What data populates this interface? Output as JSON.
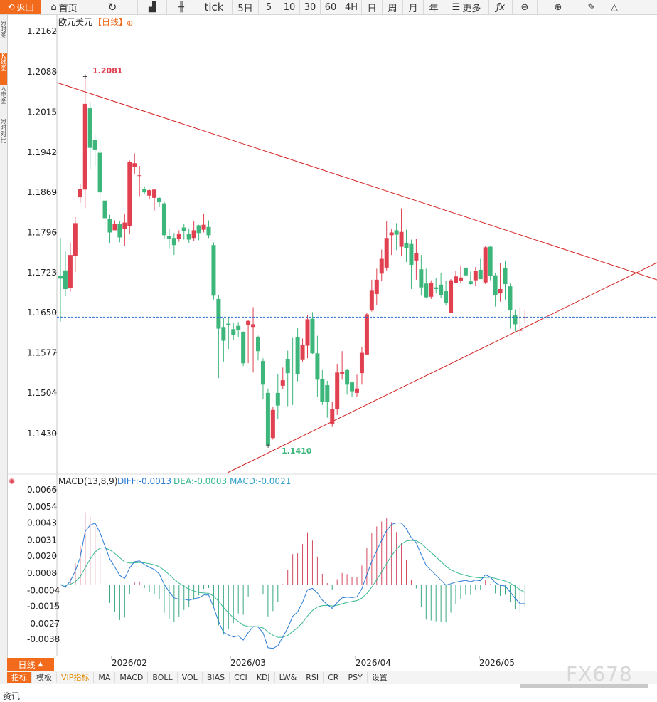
{
  "toolbar": {
    "back": "返回",
    "home": "首页",
    "tick": "tick",
    "day5": "5日",
    "p5": "5",
    "p10": "10",
    "p30": "30",
    "p60": "60",
    "p4h": "4H",
    "day": "日",
    "week": "周",
    "month": "月",
    "year": "年",
    "more": "更多"
  },
  "sidebar": {
    "tabs": [
      "分时图",
      "K线图",
      "闪电图",
      "分时对比"
    ]
  },
  "chart": {
    "title": "欧元美元",
    "period": "【日线】",
    "high_label": "1.2081",
    "low_label": "1.1410",
    "last_price": 1.1642,
    "y_ticks": [
      "1.2162",
      "1.2088",
      "1.2015",
      "1.1942",
      "1.1869",
      "1.1796",
      "1.1723",
      "1.1650",
      "1.1577",
      "1.1504",
      "1.1430"
    ],
    "x_ticks": [
      "2026/02",
      "2026/03",
      "2026/04",
      "2026/05"
    ],
    "colors": {
      "up": "#e04050",
      "down": "#3cb67a",
      "trend": "#d42020",
      "last": "#2a6fd6"
    }
  },
  "macd": {
    "title": "MACD(13,8,9)",
    "diff": "DIFF:-0.0013",
    "dea": "DEA:-0.0003",
    "macd": "MACD:-0.0021",
    "y_ticks": [
      "0.0066",
      "0.0054",
      "0.0043",
      "0.0031",
      "0.0020",
      "0.0008",
      "-0.0004",
      "-0.0015",
      "-0.0027",
      "-0.0038"
    ],
    "colors": {
      "diff": "#2a7bd6",
      "dea": "#35b890"
    }
  },
  "period_button": "日线",
  "indicators": [
    "指标",
    "模板",
    "VIP指标",
    "MA",
    "MACD",
    "BOLL",
    "VOL",
    "BIAS",
    "CCI",
    "KDJ",
    "LW&",
    "RSI",
    "CR",
    "PSY",
    "设置"
  ],
  "info_tab": "资讯",
  "watermark": "FX678",
  "chart_data": {
    "type": "candlestick",
    "candles": [
      [
        1.1717,
        1.1712,
        1.1786,
        1.1634
      ],
      [
        1.1727,
        1.1693,
        1.1761,
        1.168
      ],
      [
        1.1695,
        1.1755,
        1.1778,
        1.1688
      ],
      [
        1.1753,
        1.1813,
        1.1824,
        1.1724
      ],
      [
        1.186,
        1.1875,
        1.1885,
        1.185
      ],
      [
        1.1874,
        1.203,
        1.2081,
        1.184
      ],
      [
        1.2022,
        1.195,
        1.2034,
        1.191
      ],
      [
        1.1964,
        1.1947,
        1.1973,
        1.1917
      ],
      [
        1.1941,
        1.1869,
        1.1959,
        1.1855
      ],
      [
        1.1854,
        1.1822,
        1.1859,
        1.1788
      ],
      [
        1.1821,
        1.1796,
        1.1828,
        1.1777
      ],
      [
        1.18,
        1.1811,
        1.1818,
        1.1803
      ],
      [
        1.1812,
        1.1787,
        1.1816,
        1.1778
      ],
      [
        1.1802,
        1.1814,
        1.1829,
        1.1771
      ],
      [
        1.1807,
        1.1924,
        1.1927,
        1.1793
      ],
      [
        1.1915,
        1.1922,
        1.194,
        1.1902
      ],
      [
        1.1899,
        1.19,
        1.1917,
        1.1862
      ],
      [
        1.1875,
        1.1869,
        1.188,
        1.1866
      ],
      [
        1.1863,
        1.1873,
        1.1874,
        1.1856
      ],
      [
        1.1859,
        1.1874,
        1.1875,
        1.1836
      ],
      [
        1.1859,
        1.1851,
        1.186,
        1.1842
      ],
      [
        1.1849,
        1.1791,
        1.1852,
        1.1784
      ],
      [
        1.1789,
        1.1785,
        1.1802,
        1.1766
      ],
      [
        1.1786,
        1.1773,
        1.1795,
        1.1755
      ],
      [
        1.1784,
        1.1794,
        1.18,
        1.1779
      ],
      [
        1.1805,
        1.1799,
        1.1812,
        1.1783
      ],
      [
        1.1793,
        1.1783,
        1.1803,
        1.1777
      ],
      [
        1.1786,
        1.18,
        1.1817,
        1.178
      ],
      [
        1.1809,
        1.1795,
        1.181,
        1.1782
      ],
      [
        1.1801,
        1.181,
        1.183,
        1.1796
      ],
      [
        1.1806,
        1.1791,
        1.1818,
        1.1786
      ],
      [
        1.1773,
        1.1681,
        1.1778,
        1.1674
      ],
      [
        1.1675,
        1.1621,
        1.1682,
        1.1531
      ],
      [
        1.1624,
        1.1599,
        1.164,
        1.1561
      ],
      [
        1.163,
        1.1627,
        1.1642,
        1.1584
      ],
      [
        1.162,
        1.161,
        1.1632,
        1.1601
      ],
      [
        1.1626,
        1.1618,
        1.1633,
        1.1605
      ],
      [
        1.1615,
        1.1558,
        1.1616,
        1.1553
      ],
      [
        1.1627,
        1.1635,
        1.1637,
        1.1558
      ],
      [
        1.1624,
        1.1629,
        1.166,
        1.1541
      ],
      [
        1.1605,
        1.158,
        1.1608,
        1.1563
      ],
      [
        1.1562,
        1.1519,
        1.1567,
        1.1492
      ],
      [
        1.1504,
        1.1409,
        1.1512,
        1.141
      ],
      [
        1.1422,
        1.1473,
        1.1478,
        1.1419
      ],
      [
        1.1504,
        1.1481,
        1.1538,
        1.1456
      ],
      [
        1.1517,
        1.1527,
        1.155,
        1.1511
      ],
      [
        1.1566,
        1.154,
        1.1581,
        1.148
      ],
      [
        1.1579,
        1.1578,
        1.1604,
        1.1482
      ],
      [
        1.1606,
        1.1538,
        1.1622,
        1.1525
      ],
      [
        1.1565,
        1.1591,
        1.1603,
        1.1561
      ],
      [
        1.159,
        1.1638,
        1.1645,
        1.1567
      ],
      [
        1.1639,
        1.1576,
        1.1651,
        1.1575
      ],
      [
        1.1576,
        1.1528,
        1.1608,
        1.1496
      ],
      [
        1.1529,
        1.1488,
        1.1546,
        1.1482
      ],
      [
        1.1518,
        1.1487,
        1.1526,
        1.1459
      ],
      [
        1.1447,
        1.1475,
        1.1487,
        1.1442
      ],
      [
        1.1474,
        1.1541,
        1.1557,
        1.1464
      ],
      [
        1.1539,
        1.1542,
        1.158,
        1.1528
      ],
      [
        1.1546,
        1.1519,
        1.1548,
        1.1501
      ],
      [
        1.1523,
        1.1507,
        1.1525,
        1.1496
      ],
      [
        1.1504,
        1.1512,
        1.1537,
        1.1497
      ],
      [
        1.154,
        1.1577,
        1.1587,
        1.1519
      ],
      [
        1.1574,
        1.1647,
        1.1649,
        1.1573
      ],
      [
        1.1654,
        1.169,
        1.171,
        1.1652
      ],
      [
        1.1684,
        1.171,
        1.173,
        1.1664
      ],
      [
        1.1721,
        1.1748,
        1.1765,
        1.1707
      ],
      [
        1.1732,
        1.1786,
        1.1816,
        1.1727
      ],
      [
        1.1791,
        1.1796,
        1.1802,
        1.1755
      ],
      [
        1.18,
        1.1792,
        1.1813,
        1.1764
      ],
      [
        1.177,
        1.1797,
        1.184,
        1.1754
      ],
      [
        1.1777,
        1.1767,
        1.1801,
        1.1742
      ],
      [
        1.1775,
        1.1737,
        1.1783,
        1.1693
      ],
      [
        1.1745,
        1.1759,
        1.1785,
        1.171
      ],
      [
        1.1729,
        1.1696,
        1.1755,
        1.1681
      ],
      [
        1.1703,
        1.1678,
        1.173,
        1.1676
      ],
      [
        1.1679,
        1.1704,
        1.1709,
        1.1675
      ],
      [
        1.1696,
        1.1693,
        1.1713,
        1.1685
      ],
      [
        1.1701,
        1.1682,
        1.1722,
        1.1676
      ],
      [
        1.1689,
        1.1668,
        1.1708,
        1.1663
      ],
      [
        1.165,
        1.1709,
        1.1711,
        1.1665
      ],
      [
        1.1704,
        1.1716,
        1.1726,
        1.1705
      ],
      [
        1.1708,
        1.1714,
        1.1735,
        1.1703
      ],
      [
        1.1732,
        1.1718,
        1.1732,
        1.1716
      ],
      [
        1.1707,
        1.1702,
        1.1725,
        1.1701
      ],
      [
        1.1709,
        1.1726,
        1.1733,
        1.1698
      ],
      [
        1.1728,
        1.1711,
        1.1748,
        1.1711
      ],
      [
        1.1705,
        1.1769,
        1.1771,
        1.1702
      ],
      [
        1.177,
        1.1717,
        1.1771,
        1.1709
      ],
      [
        1.1718,
        1.1682,
        1.1722,
        1.1661
      ],
      [
        1.1685,
        1.1693,
        1.174,
        1.167
      ],
      [
        1.1732,
        1.1702,
        1.1745,
        1.1674
      ],
      [
        1.1698,
        1.1655,
        1.1703,
        1.1621
      ],
      [
        1.1645,
        1.1629,
        1.1656,
        1.1616
      ],
      [
        1.1617,
        1.1619,
        1.166,
        1.1608
      ],
      [
        1.1642,
        1.1642,
        1.1655,
        1.1631
      ]
    ],
    "ylim": [
      1.136,
      1.219
    ]
  }
}
